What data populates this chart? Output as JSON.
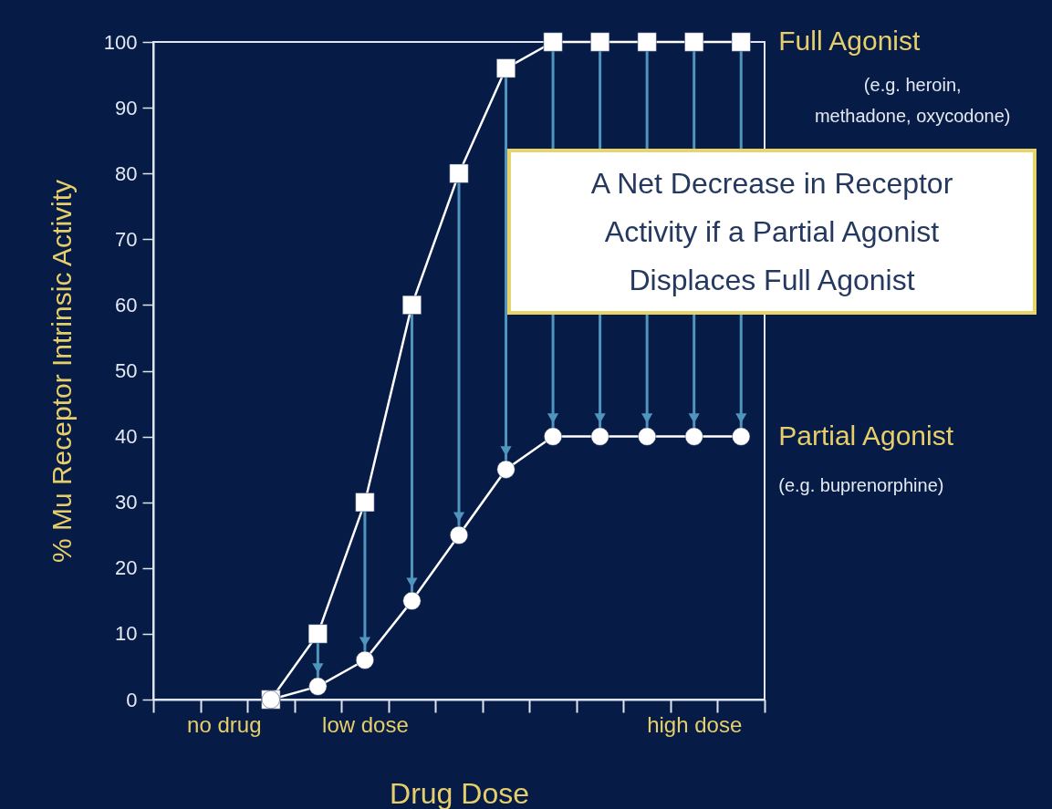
{
  "chart_data": {
    "type": "line",
    "xlabel": "Drug Dose",
    "ylabel": "% Mu Receptor Intrinsic Activity",
    "categories": [
      null,
      "no drug",
      null,
      null,
      "low dose",
      null,
      null,
      null,
      null,
      null,
      null,
      "high dose",
      null
    ],
    "series": [
      {
        "name": "Full Agonist",
        "color": "#ffffff",
        "marker": "square",
        "values": [
          null,
          null,
          0,
          10,
          30,
          60,
          80,
          96,
          100,
          100,
          100,
          100,
          100
        ]
      },
      {
        "name": "Partial Agonist",
        "color": "#ffffff",
        "marker": "circle",
        "values": [
          null,
          null,
          0,
          2,
          6,
          15,
          25,
          35,
          40,
          40,
          40,
          40,
          40
        ]
      }
    ],
    "ylim": [
      0,
      100
    ],
    "yticks": [
      0,
      10,
      20,
      30,
      40,
      50,
      60,
      70,
      80,
      90,
      100
    ],
    "grid": false,
    "legend": false,
    "annotations": [
      "A Net Decrease in Receptor Activity if a Partial Agonist Displaces Full Agonist",
      "(e.g. heroin, methadone, oxycodone)",
      "(e.g. buprenorphine)"
    ]
  }
}
